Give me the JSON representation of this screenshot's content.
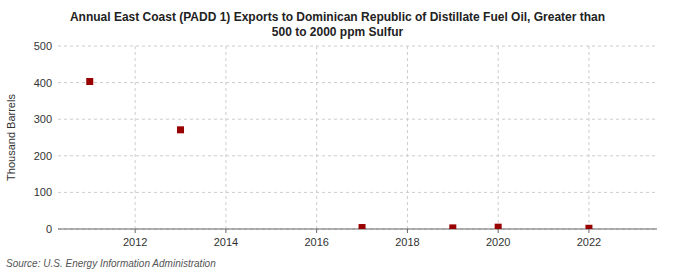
{
  "chart_data": {
    "type": "scatter",
    "title": "Annual East Coast (PADD 1) Exports to Dominican Republic of Distillate Fuel Oil, Greater than\n500 to 2000 ppm Sulfur",
    "y_label": "Thousand Barrels",
    "annotations": [
      "Source: U.S. Energy Information Administration"
    ],
    "x": [
      2011,
      2013,
      2017,
      2019,
      2020,
      2022
    ],
    "values": [
      403,
      271,
      4,
      3,
      5,
      2
    ],
    "color": "#990000",
    "marker": "square",
    "xlim": [
      2010.3,
      2023.5
    ],
    "ylim": [
      0,
      500
    ],
    "xticks": [
      2012,
      2014,
      2016,
      2018,
      2020,
      2022
    ],
    "yticks": [
      0,
      100,
      200,
      300,
      400,
      500
    ],
    "grid": true
  }
}
